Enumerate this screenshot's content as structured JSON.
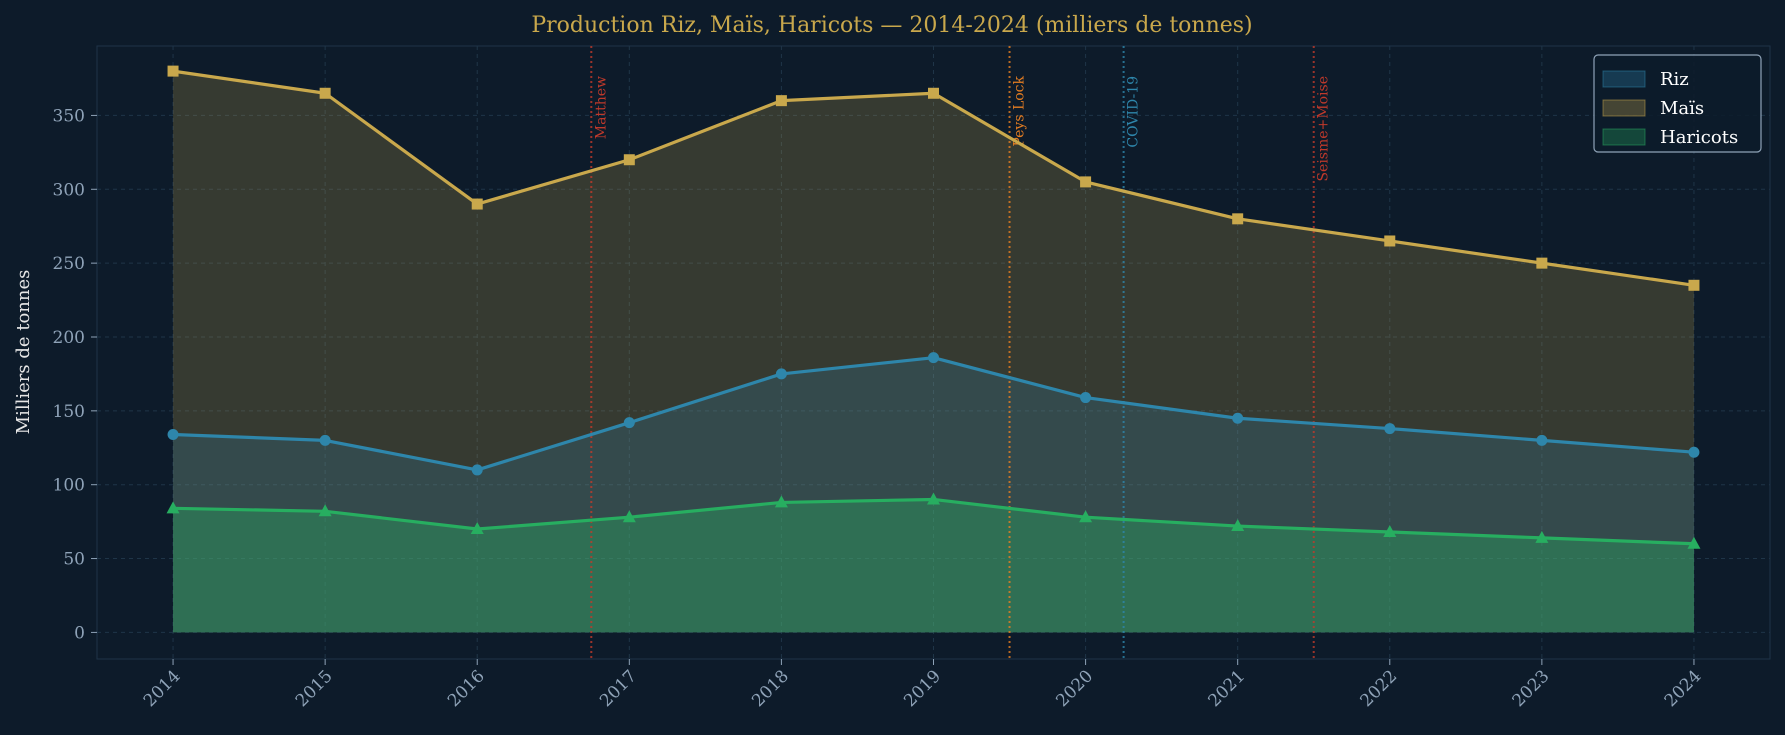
{
  "chart_data": {
    "type": "area",
    "title": "Production Riz, Maïs, Haricots — 2014-2024 (milliers de tonnes)",
    "xlabel": "",
    "ylabel": "Milliers de tonnes",
    "x": [
      2014,
      2015,
      2016,
      2017,
      2018,
      2019,
      2020,
      2021,
      2022,
      2023,
      2024
    ],
    "xlim": [
      2013.5,
      2024.5
    ],
    "ylim": [
      -18,
      397
    ],
    "yticks": [
      0,
      50,
      100,
      150,
      200,
      250,
      300,
      350
    ],
    "grid": true,
    "legend_position": "top-right",
    "series": [
      {
        "name": "Riz",
        "color": "#2e86ab",
        "marker": "circle",
        "values": [
          134,
          130,
          110,
          142,
          175,
          186,
          159,
          145,
          138,
          130,
          122
        ]
      },
      {
        "name": "Maïs",
        "color": "#c9a84c",
        "marker": "square",
        "values": [
          380,
          365,
          290,
          320,
          360,
          365,
          305,
          280,
          265,
          250,
          235
        ]
      },
      {
        "name": "Haricots",
        "color": "#27ae60",
        "marker": "triangle",
        "values": [
          84,
          82,
          70,
          78,
          88,
          90,
          78,
          72,
          68,
          64,
          60
        ]
      }
    ],
    "annotations": [
      {
        "x": 2016.75,
        "label": "Matthew",
        "color": "#c0392b"
      },
      {
        "x": 2019.5,
        "label": "Peys Lock",
        "color": "#e67e22"
      },
      {
        "x": 2020.25,
        "label": "COVID-19",
        "color": "#2e86ab"
      },
      {
        "x": 2021.5,
        "label": "Seisme+Moise",
        "color": "#c0392b"
      }
    ]
  }
}
